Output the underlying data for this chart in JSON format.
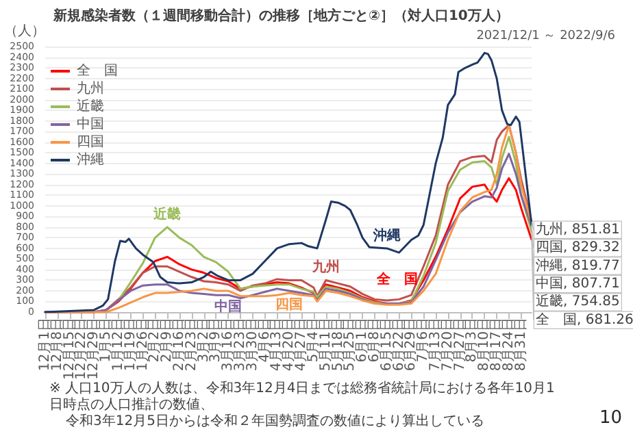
{
  "chart_data": {
    "type": "line",
    "title": "新規感染者数（１週間移動合計）の推移［地方ごと②］（対人口10万人）",
    "subtitle": "2021/12/1 ～ 2022/9/6",
    "ylabel": "（人）",
    "x": [
      "2021-12-01",
      "2021-12-29",
      "2022-01-05",
      "2022-01-12",
      "2022-01-19",
      "2022-01-26",
      "2022-02-02",
      "2022-02-09",
      "2022-02-16",
      "2022-02-23",
      "2022-03-02",
      "2022-03-09",
      "2022-03-16",
      "2022-03-23",
      "2022-03-30",
      "2022-04-06",
      "2022-04-13",
      "2022-04-20",
      "2022-04-27",
      "2022-05-04",
      "2022-05-06",
      "2022-05-11",
      "2022-05-18",
      "2022-05-25",
      "2022-06-01",
      "2022-06-08",
      "2022-06-15",
      "2022-06-22",
      "2022-06-29",
      "2022-07-06",
      "2022-07-13",
      "2022-07-20",
      "2022-07-27",
      "2022-08-03",
      "2022-08-10",
      "2022-08-14",
      "2022-08-17",
      "2022-08-20",
      "2022-08-24",
      "2022-08-28",
      "2022-08-31",
      "2022-09-06"
    ],
    "series": [
      {
        "name": "全　国",
        "color": "#ff0000",
        "values": [
          0,
          0,
          20,
          100,
          220,
          370,
          480,
          520,
          450,
          400,
          370,
          320,
          290,
          220,
          240,
          260,
          280,
          270,
          230,
          180,
          140,
          260,
          230,
          200,
          140,
          100,
          80,
          80,
          110,
          300,
          520,
          780,
          1070,
          1180,
          1200,
          1100,
          1040,
          1150,
          1260,
          1150,
          980,
          681.26
        ],
        "value_labels": [
          null,
          null,
          null,
          null,
          null,
          null,
          null,
          null,
          null,
          null,
          null,
          null,
          null,
          null,
          null,
          null,
          null,
          null,
          null,
          null,
          null,
          null,
          null,
          null,
          null,
          null,
          null,
          null,
          null,
          "全　国",
          null,
          null,
          null,
          null,
          null,
          null,
          null,
          null,
          null,
          null,
          null,
          "全　国, 681.26"
        ]
      },
      {
        "name": "九州",
        "color": "#c0504d",
        "values": [
          0,
          0,
          20,
          120,
          230,
          370,
          430,
          430,
          380,
          330,
          290,
          280,
          260,
          200,
          250,
          270,
          310,
          300,
          300,
          230,
          150,
          300,
          270,
          240,
          170,
          120,
          110,
          120,
          160,
          430,
          720,
          1200,
          1420,
          1460,
          1470,
          1410,
          1620,
          1700,
          1760,
          1500,
          1250,
          851.81
        ],
        "value_labels": [
          null,
          null,
          null,
          null,
          null,
          null,
          null,
          null,
          null,
          null,
          null,
          null,
          null,
          null,
          null,
          null,
          null,
          null,
          null,
          null,
          null,
          "九州",
          null,
          null,
          null,
          null,
          null,
          null,
          null,
          null,
          null,
          null,
          null,
          null,
          null,
          null,
          null,
          null,
          null,
          null,
          null,
          "九州, 851.81"
        ]
      },
      {
        "name": "近畿",
        "color": "#9bbb59",
        "values": [
          null,
          null,
          20,
          110,
          280,
          460,
          700,
          800,
          700,
          630,
          520,
          470,
          380,
          220,
          240,
          250,
          260,
          260,
          220,
          190,
          140,
          240,
          220,
          180,
          130,
          90,
          80,
          80,
          100,
          340,
          650,
          1140,
          1340,
          1410,
          1420,
          1360,
          1200,
          1450,
          1650,
          1400,
          1100,
          754.85
        ],
        "value_labels": [
          null,
          null,
          null,
          null,
          null,
          null,
          null,
          "近畿",
          null,
          null,
          null,
          null,
          null,
          null,
          null,
          null,
          null,
          null,
          null,
          null,
          null,
          null,
          null,
          null,
          null,
          null,
          null,
          null,
          null,
          null,
          null,
          null,
          null,
          null,
          null,
          null,
          null,
          null,
          null,
          null,
          null,
          "近畿, 754.85"
        ]
      },
      {
        "name": "中国",
        "color": "#8064a2",
        "values": [
          0,
          0,
          20,
          110,
          200,
          250,
          260,
          260,
          200,
          180,
          170,
          160,
          160,
          130,
          160,
          190,
          220,
          200,
          180,
          160,
          110,
          220,
          200,
          170,
          120,
          80,
          80,
          80,
          90,
          240,
          490,
          750,
          940,
          1040,
          1090,
          1080,
          1170,
          1350,
          1490,
          1300,
          1100,
          807.71
        ],
        "value_labels": [
          null,
          null,
          null,
          null,
          null,
          null,
          null,
          null,
          null,
          null,
          null,
          null,
          "中国",
          null,
          null,
          null,
          null,
          null,
          null,
          null,
          null,
          null,
          null,
          null,
          null,
          null,
          null,
          null,
          null,
          null,
          null,
          null,
          null,
          null,
          null,
          null,
          null,
          null,
          null,
          null,
          null,
          "中国, 807.71"
        ]
      },
      {
        "name": "四国",
        "color": "#f79646",
        "values": [
          0,
          0,
          0,
          40,
          90,
          140,
          180,
          180,
          190,
          200,
          220,
          200,
          200,
          150,
          150,
          150,
          160,
          180,
          160,
          150,
          100,
          200,
          180,
          150,
          110,
          80,
          70,
          70,
          80,
          200,
          360,
          680,
          950,
          1080,
          1130,
          1150,
          1300,
          1550,
          1760,
          1500,
          1200,
          829.32
        ],
        "value_labels": [
          null,
          null,
          null,
          null,
          null,
          null,
          null,
          null,
          null,
          null,
          null,
          null,
          null,
          null,
          null,
          null,
          null,
          "四国",
          null,
          null,
          null,
          null,
          null,
          null,
          null,
          null,
          null,
          null,
          null,
          null,
          null,
          null,
          null,
          null,
          null,
          null,
          null,
          null,
          null,
          null,
          null,
          "四国, 829.32"
        ]
      },
      {
        "name": "沖縄",
        "color": "#1f3864",
        "x": [
          "2021-12-01",
          "2021-12-29",
          "2022-01-03",
          "2022-01-06",
          "2022-01-08",
          "2022-01-10",
          "2022-01-13",
          "2022-01-16",
          "2022-01-18",
          "2022-01-22",
          "2022-01-26",
          "2022-02-01",
          "2022-02-05",
          "2022-02-09",
          "2022-02-16",
          "2022-02-23",
          "2022-03-02",
          "2022-03-06",
          "2022-03-10",
          "2022-03-16",
          "2022-03-23",
          "2022-03-30",
          "2022-04-06",
          "2022-04-13",
          "2022-04-20",
          "2022-04-27",
          "2022-05-01",
          "2022-05-06",
          "2022-05-11",
          "2022-05-14",
          "2022-05-18",
          "2022-05-22",
          "2022-05-25",
          "2022-05-29",
          "2022-06-01",
          "2022-06-05",
          "2022-06-15",
          "2022-06-22",
          "2022-06-29",
          "2022-07-03",
          "2022-07-06",
          "2022-07-13",
          "2022-07-17",
          "2022-07-20",
          "2022-07-24",
          "2022-07-26",
          "2022-07-30",
          "2022-08-03",
          "2022-08-06",
          "2022-08-10",
          "2022-08-12",
          "2022-08-14",
          "2022-08-17",
          "2022-08-20",
          "2022-08-23",
          "2022-08-25",
          "2022-08-28",
          "2022-08-30",
          "2022-09-06"
        ],
        "values": [
          0,
          20,
          60,
          120,
          300,
          480,
          670,
          660,
          690,
          600,
          540,
          470,
          330,
          280,
          270,
          280,
          330,
          380,
          340,
          300,
          300,
          360,
          480,
          600,
          640,
          650,
          620,
          600,
          870,
          1040,
          1030,
          1000,
          960,
          820,
          700,
          610,
          600,
          560,
          680,
          720,
          820,
          1400,
          1640,
          1950,
          2050,
          2260,
          2300,
          2330,
          2350,
          2440,
          2430,
          2370,
          2200,
          1900,
          1770,
          1760,
          1840,
          1790,
          819.77
        ],
        "value_labels": [
          null,
          null,
          null,
          null,
          null,
          null,
          null,
          null,
          null,
          null,
          null,
          null,
          null,
          null,
          null,
          null,
          null,
          null,
          null,
          null,
          null,
          null,
          null,
          null,
          null,
          null,
          null,
          null,
          null,
          null,
          null,
          null,
          null,
          null,
          null,
          null,
          "沖縄",
          null,
          null,
          null,
          null,
          null,
          null,
          null,
          null,
          null,
          null,
          null,
          null,
          null,
          null,
          null,
          null,
          null,
          null,
          null,
          null,
          null,
          "沖縄, 819.77"
        ]
      }
    ],
    "xlim": [
      "2021-12-01",
      "2022-09-06"
    ],
    "xticks": [
      {
        "value": "2021-12-01",
        "label": "12月1日"
      },
      {
        "value": "2021-12-08",
        "label": "12月8日"
      },
      {
        "value": "2021-12-15",
        "label": "12月15日"
      },
      {
        "value": "2021-12-22",
        "label": "12月22日"
      },
      {
        "value": "2021-12-29",
        "label": "12月29日"
      },
      {
        "value": "2022-01-05",
        "label": "1月5日"
      },
      {
        "value": "2022-01-12",
        "label": "1月12日"
      },
      {
        "value": "2022-01-19",
        "label": "1月19日"
      },
      {
        "value": "2022-01-26",
        "label": "1月26日"
      },
      {
        "value": "2022-02-02",
        "label": "2月2日"
      },
      {
        "value": "2022-02-09",
        "label": "2月9日"
      },
      {
        "value": "2022-02-16",
        "label": "2月16日"
      },
      {
        "value": "2022-02-23",
        "label": "2月23日"
      },
      {
        "value": "2022-03-02",
        "label": "3月2日"
      },
      {
        "value": "2022-03-09",
        "label": "3月9日"
      },
      {
        "value": "2022-03-16",
        "label": "3月16日"
      },
      {
        "value": "2022-03-23",
        "label": "3月23日"
      },
      {
        "value": "2022-03-30",
        "label": "3月30日"
      },
      {
        "value": "2022-04-06",
        "label": "4月6日"
      },
      {
        "value": "2022-04-13",
        "label": "4月13日"
      },
      {
        "value": "2022-04-20",
        "label": "4月20日"
      },
      {
        "value": "2022-04-27",
        "label": "4月27日"
      },
      {
        "value": "2022-05-04",
        "label": "5月4日"
      },
      {
        "value": "2022-05-11",
        "label": "5月11日"
      },
      {
        "value": "2022-05-18",
        "label": "5月18日"
      },
      {
        "value": "2022-05-25",
        "label": "5月25日"
      },
      {
        "value": "2022-06-01",
        "label": "6月1日"
      },
      {
        "value": "2022-06-08",
        "label": "6月8日"
      },
      {
        "value": "2022-06-15",
        "label": "6月15日"
      },
      {
        "value": "2022-06-22",
        "label": "6月22日"
      },
      {
        "value": "2022-06-29",
        "label": "6月29日"
      },
      {
        "value": "2022-07-06",
        "label": "7月6日"
      },
      {
        "value": "2022-07-13",
        "label": "7月13日"
      },
      {
        "value": "2022-07-20",
        "label": "7月20日"
      },
      {
        "value": "2022-07-27",
        "label": "7月27日"
      },
      {
        "value": "2022-08-03",
        "label": "8月3日"
      },
      {
        "value": "2022-08-10",
        "label": "8月10日"
      },
      {
        "value": "2022-08-17",
        "label": "8月17日"
      },
      {
        "value": "2022-08-24",
        "label": "8月24日"
      },
      {
        "value": "2022-08-31",
        "label": "8月31日"
      }
    ],
    "ylim": [
      0,
      2500
    ],
    "yticks": [
      0,
      100,
      200,
      300,
      400,
      500,
      600,
      700,
      800,
      900,
      1000,
      1100,
      1200,
      1300,
      1400,
      1500,
      1600,
      1700,
      1800,
      1900,
      2000,
      2100,
      2200,
      2300,
      2400,
      2500
    ],
    "grid": "y",
    "legend": "top left",
    "marker": "none",
    "line_style": "solid",
    "annotations": [
      "※ 人口10万人の人数は、令和3年12月4日までは総務省統計局における各年10月1日時点の人口推計の数値、",
      "令和3年12月5日からは令和２年国勢調査の数値により算出している",
      "10"
    ]
  }
}
